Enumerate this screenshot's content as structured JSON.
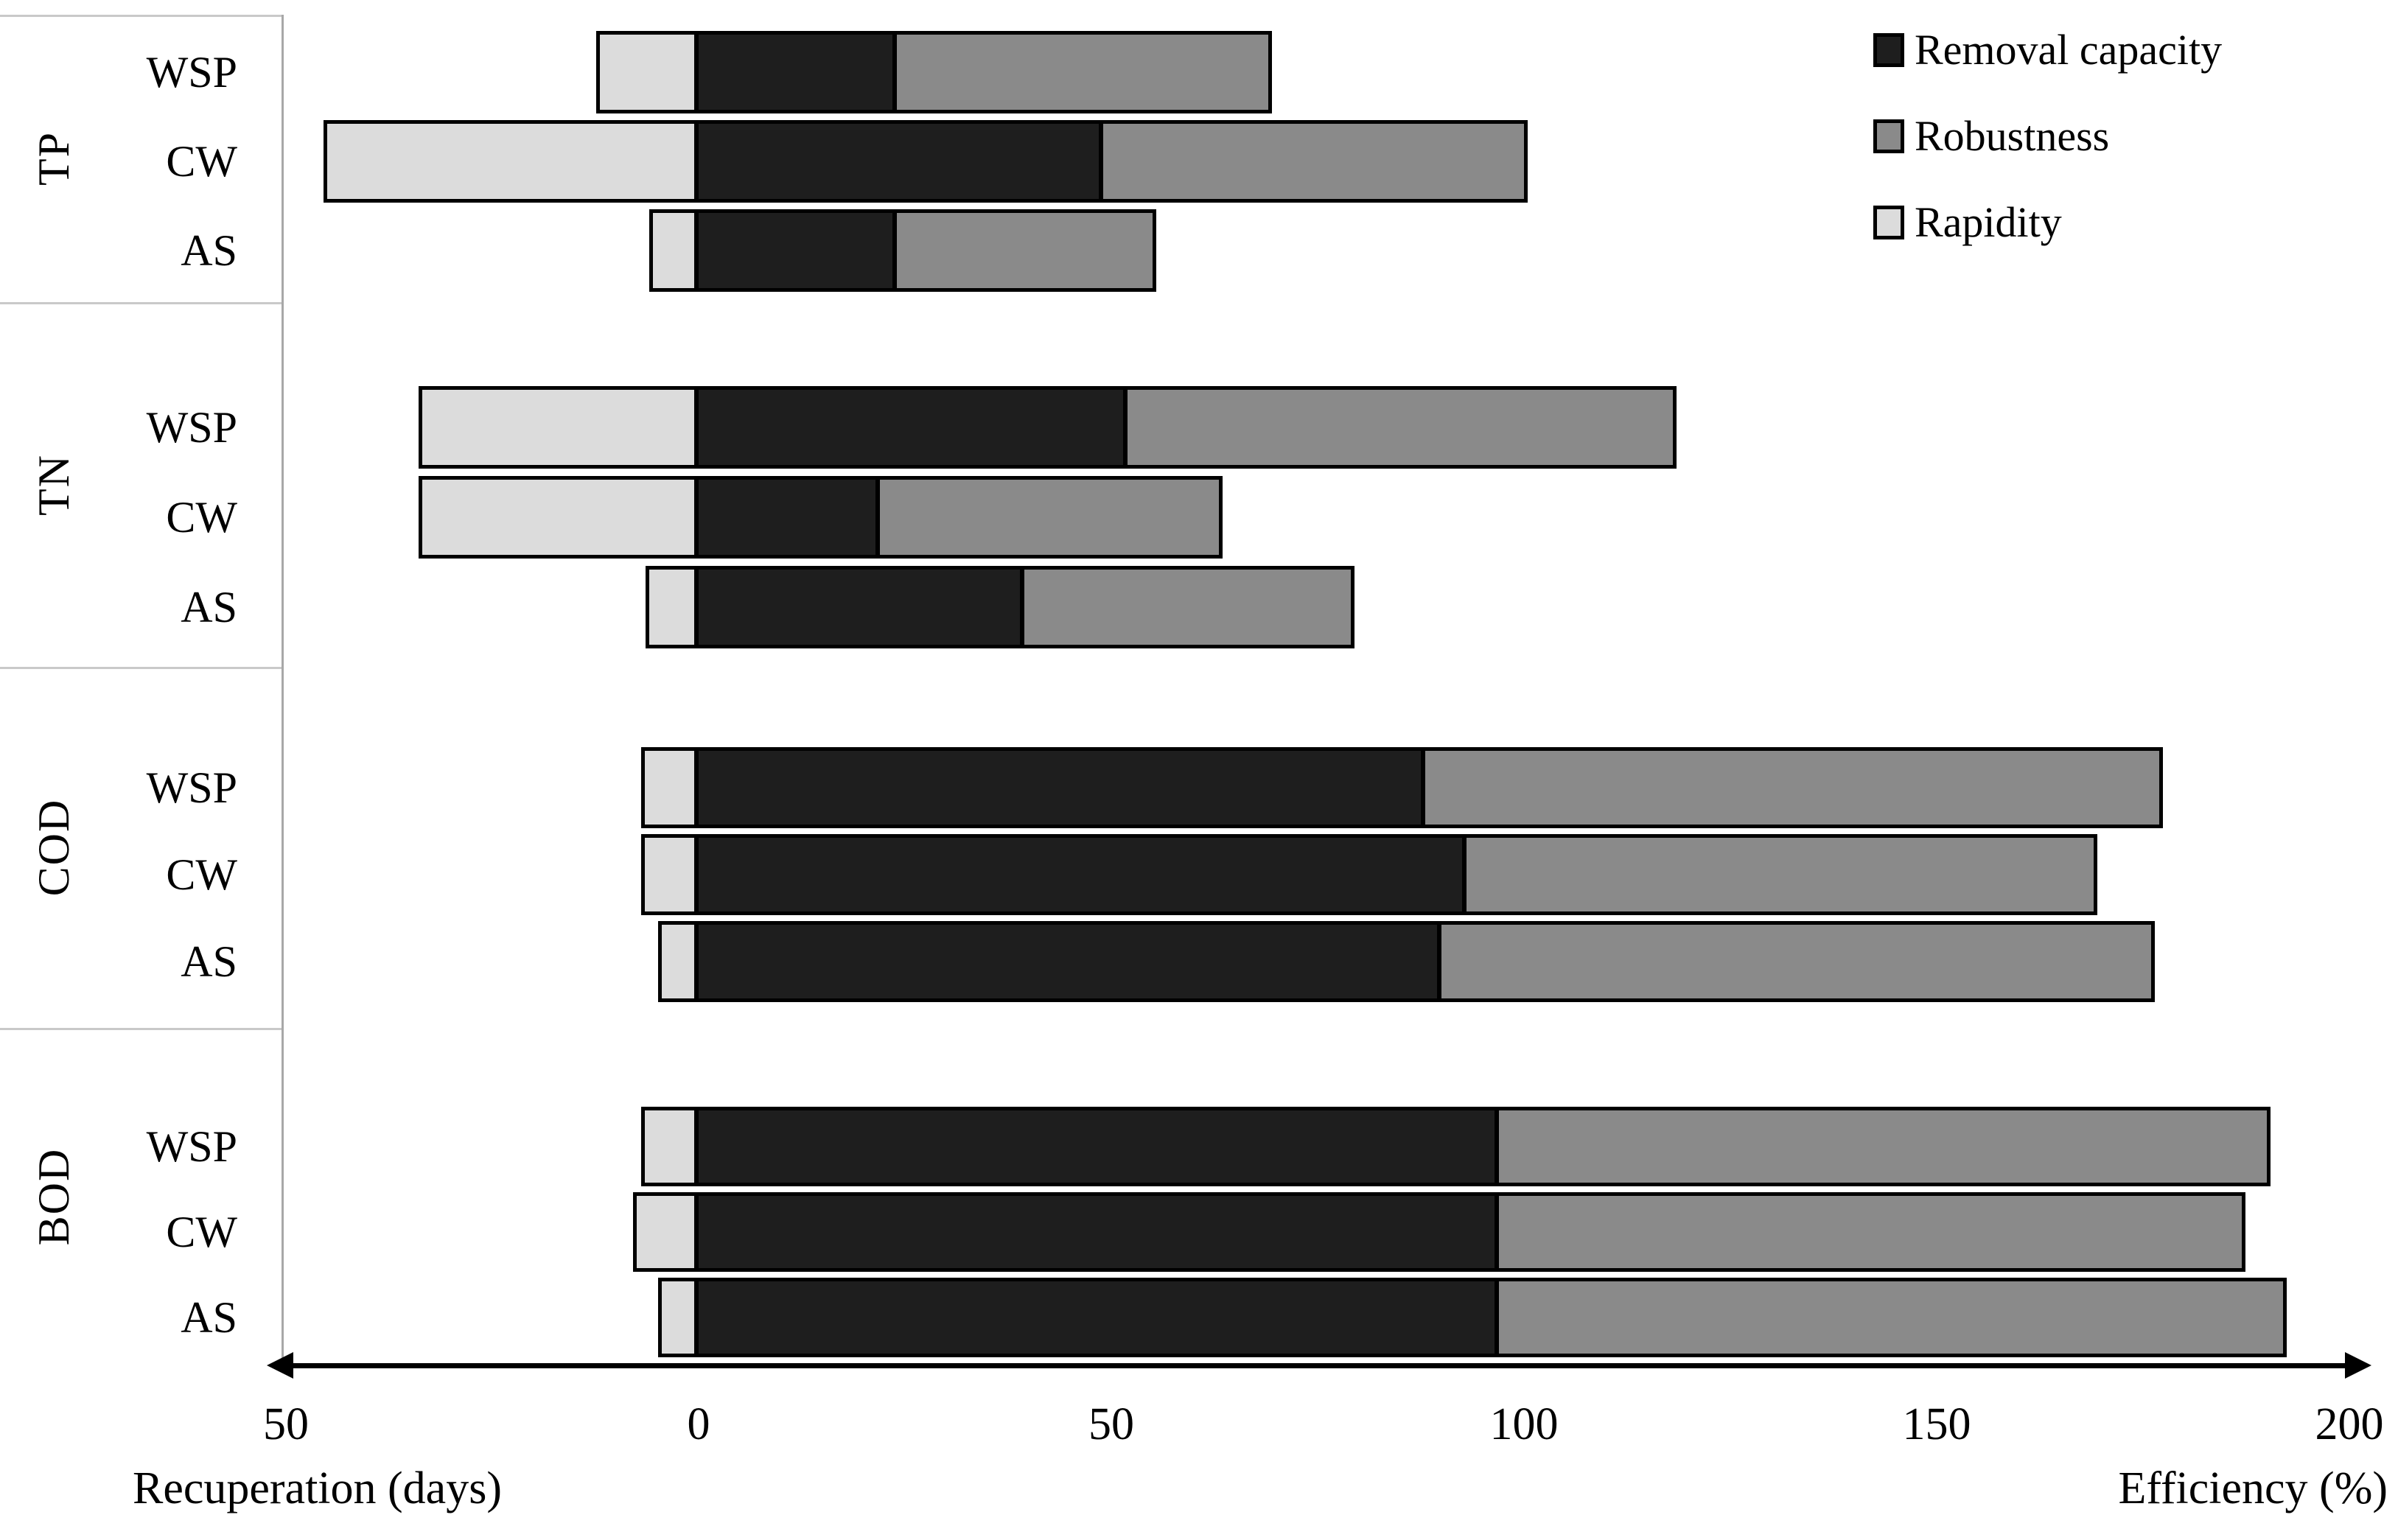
{
  "chart_data": {
    "type": "bar",
    "variant": "diverging-stacked-horizontal",
    "axis": {
      "left_axis_label": "Recuperation (days)",
      "right_axis_label": "Efficiency (%)",
      "ticks": [
        {
          "value": -50,
          "label": "50"
        },
        {
          "value": 0,
          "label": "0"
        },
        {
          "value": 50,
          "label": "50"
        },
        {
          "value": 100,
          "label": "100"
        },
        {
          "value": 150,
          "label": "150"
        },
        {
          "value": 200,
          "label": "200"
        }
      ],
      "xlim": [
        -52,
        202
      ],
      "grid": false
    },
    "legend": [
      {
        "name": "Removal capacity",
        "color": "#1e1e1e"
      },
      {
        "name": "Robustness",
        "color": "#8a8a8a"
      },
      {
        "name": "Rapidity",
        "color": "#dcdcdc"
      }
    ],
    "legend_position": "top-right",
    "groups": [
      {
        "label": "TP",
        "rows": [
          {
            "system": "WSP",
            "rapidity_days": 12,
            "removal_capacity_pct": 24,
            "robustness_pct": 45
          },
          {
            "system": "CW",
            "rapidity_days": 45,
            "removal_capacity_pct": 49,
            "robustness_pct": 51
          },
          {
            "system": "AS",
            "rapidity_days": 5.5,
            "removal_capacity_pct": 24,
            "robustness_pct": 31
          }
        ]
      },
      {
        "label": "TN",
        "rows": [
          {
            "system": "WSP",
            "rapidity_days": 33.5,
            "removal_capacity_pct": 52,
            "robustness_pct": 66
          },
          {
            "system": "CW",
            "rapidity_days": 33.5,
            "removal_capacity_pct": 22,
            "robustness_pct": 41
          },
          {
            "system": "AS",
            "rapidity_days": 6,
            "removal_capacity_pct": 39.5,
            "robustness_pct": 39.5
          }
        ]
      },
      {
        "label": "COD",
        "rows": [
          {
            "system": "WSP",
            "rapidity_days": 6.5,
            "removal_capacity_pct": 88,
            "robustness_pct": 89
          },
          {
            "system": "CW",
            "rapidity_days": 6.5,
            "removal_capacity_pct": 93,
            "robustness_pct": 76
          },
          {
            "system": "AS",
            "rapidity_days": 4.5,
            "removal_capacity_pct": 90,
            "robustness_pct": 86
          }
        ]
      },
      {
        "label": "BOD",
        "rows": [
          {
            "system": "WSP",
            "rapidity_days": 6.5,
            "removal_capacity_pct": 97,
            "robustness_pct": 93
          },
          {
            "system": "CW",
            "rapidity_days": 7.5,
            "removal_capacity_pct": 97,
            "robustness_pct": 90
          },
          {
            "system": "AS",
            "rapidity_days": 4.5,
            "removal_capacity_pct": 97,
            "robustness_pct": 95
          }
        ]
      }
    ]
  }
}
